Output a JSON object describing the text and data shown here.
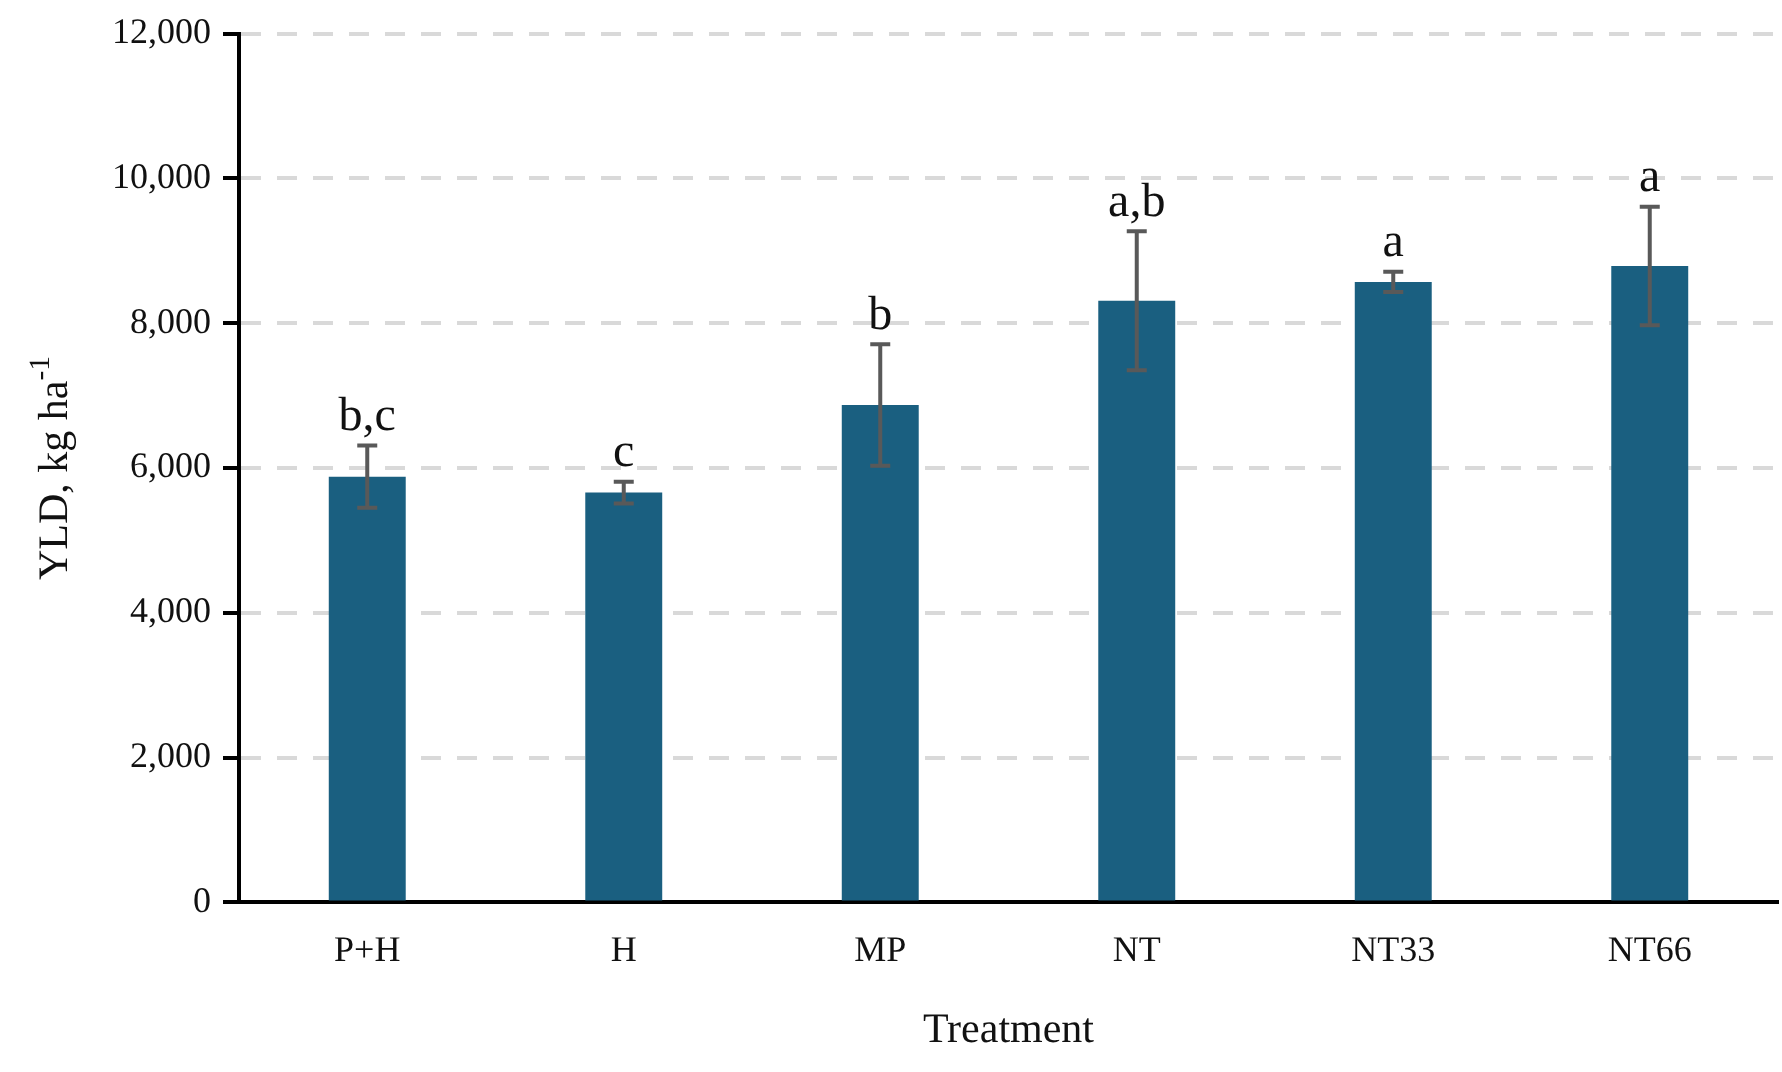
{
  "chart_data": {
    "type": "bar",
    "xlabel": "Treatment",
    "ylabel": "YLD, kg ha$^{-1}$",
    "categories": [
      "P+H",
      "H",
      "MP",
      "NT",
      "NT33",
      "NT66"
    ],
    "values": [
      5880,
      5660,
      6870,
      8310,
      8570,
      8790
    ],
    "errors": [
      430,
      150,
      840,
      960,
      140,
      820
    ],
    "color": "#1a5f80",
    "ylim": [
      0,
      12000
    ],
    "yticks": [
      {
        "value": 0,
        "label": "0"
      },
      {
        "value": 2000,
        "label": "2,000"
      },
      {
        "value": 4000,
        "label": "4,000"
      },
      {
        "value": 6000,
        "label": "6,000"
      },
      {
        "value": 8000,
        "label": "8,000"
      },
      {
        "value": 10000,
        "label": "10,000"
      },
      {
        "value": 12000,
        "label": "12,000"
      }
    ],
    "grid": "y",
    "legend": false,
    "annotations": [
      {
        "text": "b,c",
        "x": "P+H",
        "y": 6310
      },
      {
        "text": "c",
        "x": "H",
        "y": 5810
      },
      {
        "text": "b",
        "x": "MP",
        "y": 7710
      },
      {
        "text": "a,b",
        "x": "NT",
        "y": 9270
      },
      {
        "text": "a",
        "x": "NT33",
        "y": 8710
      },
      {
        "text": "a",
        "x": "NT66",
        "y": 9610
      }
    ]
  }
}
